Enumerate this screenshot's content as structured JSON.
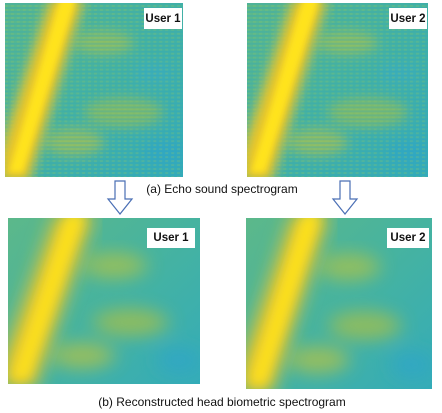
{
  "rows": [
    {
      "panels": [
        "User 1",
        "User 2"
      ],
      "caption": "(a) Echo sound spectrogram"
    },
    {
      "panels": [
        "User 1",
        "User 2"
      ],
      "caption": "(b) Reconstructed head biometric spectrogram"
    }
  ]
}
